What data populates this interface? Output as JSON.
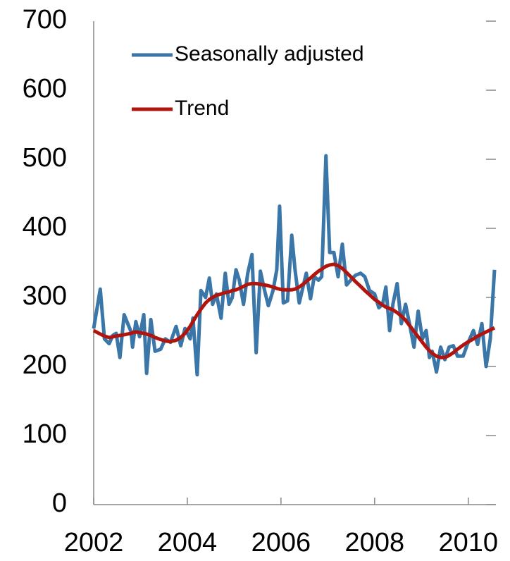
{
  "chart_data": {
    "type": "line",
    "x": [
      2002.0,
      2002.14,
      2002.23,
      2002.33,
      2002.41,
      2002.48,
      2002.56,
      2002.65,
      2002.8,
      2002.83,
      2002.9,
      2002.98,
      2003.07,
      2003.13,
      2003.22,
      2003.31,
      2003.43,
      2003.53,
      2003.64,
      2003.76,
      2003.86,
      2003.95,
      2004.06,
      2004.12,
      2004.21,
      2004.29,
      2004.39,
      2004.47,
      2004.54,
      2004.62,
      2004.72,
      2004.81,
      2004.89,
      2004.96,
      2005.04,
      2005.11,
      2005.2,
      2005.29,
      2005.38,
      2005.47,
      2005.56,
      2005.65,
      2005.73,
      2005.83,
      2005.91,
      2005.97,
      2006.05,
      2006.14,
      2006.23,
      2006.3,
      2006.39,
      2006.47,
      2006.54,
      2006.63,
      2006.71,
      2006.8,
      2006.87,
      2006.96,
      2007.04,
      2007.13,
      2007.22,
      2007.31,
      2007.4,
      2007.49,
      2007.59,
      2007.7,
      2007.79,
      2007.89,
      2008.0,
      2008.09,
      2008.17,
      2008.24,
      2008.32,
      2008.39,
      2008.48,
      2008.57,
      2008.66,
      2008.75,
      2008.84,
      2008.93,
      2009.02,
      2009.1,
      2009.17,
      2009.23,
      2009.32,
      2009.41,
      2009.5,
      2009.59,
      2009.68,
      2009.77,
      2009.89,
      2009.98,
      2010.11,
      2010.2,
      2010.29,
      2010.38,
      2010.47,
      2010.56
    ],
    "series": [
      {
        "name": "Seasonally adjusted",
        "color": "#3a76a8",
        "values": [
          255,
          312,
          240,
          233,
          245,
          248,
          213,
          275,
          250,
          228,
          265,
          243,
          275,
          190,
          268,
          222,
          225,
          240,
          235,
          258,
          230,
          255,
          240,
          270,
          188,
          310,
          300,
          328,
          290,
          305,
          270,
          335,
          290,
          300,
          340,
          325,
          290,
          335,
          362,
          220,
          338,
          310,
          288,
          310,
          340,
          432,
          292,
          295,
          390,
          340,
          292,
          315,
          335,
          298,
          330,
          325,
          330,
          505,
          365,
          365,
          330,
          377,
          318,
          325,
          332,
          335,
          330,
          310,
          305,
          285,
          290,
          315,
          252,
          290,
          320,
          262,
          290,
          260,
          228,
          280,
          240,
          252,
          213,
          222,
          192,
          228,
          210,
          228,
          230,
          215,
          215,
          232,
          252,
          232,
          262,
          200,
          240,
          340
        ]
      },
      {
        "name": "Trend",
        "color": "#b0140f",
        "values": [
          252,
          247,
          244,
          242,
          243,
          244,
          245,
          246,
          248,
          249,
          250,
          249,
          248,
          247,
          245,
          242,
          239,
          237,
          236,
          238,
          242,
          248,
          258,
          265,
          275,
          283,
          292,
          297,
          300,
          303,
          305,
          307,
          308,
          310,
          311,
          313,
          316,
          319,
          320,
          320,
          319,
          318,
          317,
          315,
          313,
          312,
          311,
          311,
          311,
          312,
          315,
          319,
          323,
          328,
          333,
          338,
          341,
          345,
          347,
          348,
          346,
          342,
          336,
          330,
          323,
          316,
          310,
          304,
          297,
          293,
          289,
          286,
          284,
          282,
          278,
          273,
          267,
          259,
          251,
          243,
          235,
          228,
          223,
          219,
          215,
          213,
          213,
          216,
          220,
          225,
          231,
          235,
          240,
          244,
          247,
          250,
          253,
          256
        ]
      }
    ],
    "xlim": [
      2002,
      2010.59
    ],
    "xticks": [
      2002,
      2004,
      2006,
      2008,
      2010
    ],
    "ylim": [
      0,
      700
    ],
    "yticks": [
      0,
      100,
      200,
      300,
      400,
      500,
      600,
      700
    ],
    "legend": "top-left"
  }
}
